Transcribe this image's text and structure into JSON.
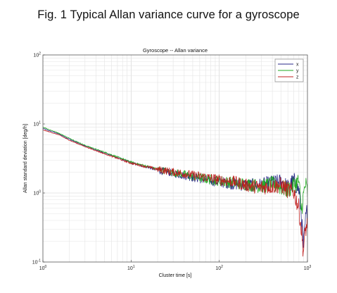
{
  "figure_title": "Fig. 1 Typical Allan variance curve for a gyroscope",
  "chart_data": {
    "type": "line",
    "title": "Gyroscope -- Allan variance",
    "xlabel": "Cluster time [s]",
    "ylabel": "Allan standard deviation [deg/h]",
    "xscale": "log",
    "yscale": "log",
    "xlim": [
      1,
      1000
    ],
    "ylim": [
      0.1,
      100
    ],
    "x_ticks": [
      {
        "base": "10",
        "exp": "0"
      },
      {
        "base": "10",
        "exp": "1"
      },
      {
        "base": "10",
        "exp": "2"
      },
      {
        "base": "10",
        "exp": "3"
      }
    ],
    "y_ticks": [
      {
        "base": "10",
        "exp": "-1"
      },
      {
        "base": "10",
        "exp": "0"
      },
      {
        "base": "10",
        "exp": "1"
      },
      {
        "base": "10",
        "exp": "2"
      }
    ],
    "grid": true,
    "legend_position": "top-right",
    "series": [
      {
        "name": "x",
        "color": "#2a2a8a",
        "x": [
          1,
          1.5,
          2,
          3,
          5,
          10,
          20,
          40,
          70,
          100,
          150,
          200,
          300,
          400,
          500,
          600,
          700,
          800,
          850,
          900,
          950,
          1000
        ],
        "y": [
          8.6,
          7.2,
          6.0,
          4.8,
          3.8,
          2.75,
          2.15,
          1.8,
          1.55,
          1.45,
          1.35,
          1.3,
          1.3,
          1.4,
          1.45,
          1.2,
          1.5,
          1.1,
          0.5,
          0.16,
          0.4,
          0.6
        ]
      },
      {
        "name": "y",
        "color": "#22aa22",
        "x": [
          1,
          1.5,
          2,
          3,
          5,
          10,
          20,
          40,
          70,
          100,
          150,
          200,
          300,
          400,
          500,
          600,
          700,
          800,
          850,
          900,
          950,
          1000
        ],
        "y": [
          9.0,
          7.4,
          6.2,
          4.9,
          3.9,
          2.8,
          2.2,
          1.85,
          1.6,
          1.5,
          1.4,
          1.35,
          1.25,
          1.35,
          1.2,
          1.1,
          1.3,
          1.5,
          0.55,
          0.9,
          1.35,
          1.0
        ]
      },
      {
        "name": "z",
        "color": "#c02020",
        "x": [
          1,
          1.5,
          2,
          3,
          5,
          10,
          20,
          40,
          70,
          100,
          150,
          200,
          300,
          400,
          500,
          600,
          700,
          800,
          850,
          900,
          950,
          1000
        ],
        "y": [
          8.2,
          7.0,
          5.8,
          4.7,
          3.7,
          2.7,
          2.2,
          1.9,
          1.7,
          1.55,
          1.45,
          1.3,
          1.2,
          1.25,
          1.3,
          1.1,
          1.05,
          0.6,
          0.3,
          0.14,
          0.3,
          0.35
        ]
      }
    ]
  }
}
